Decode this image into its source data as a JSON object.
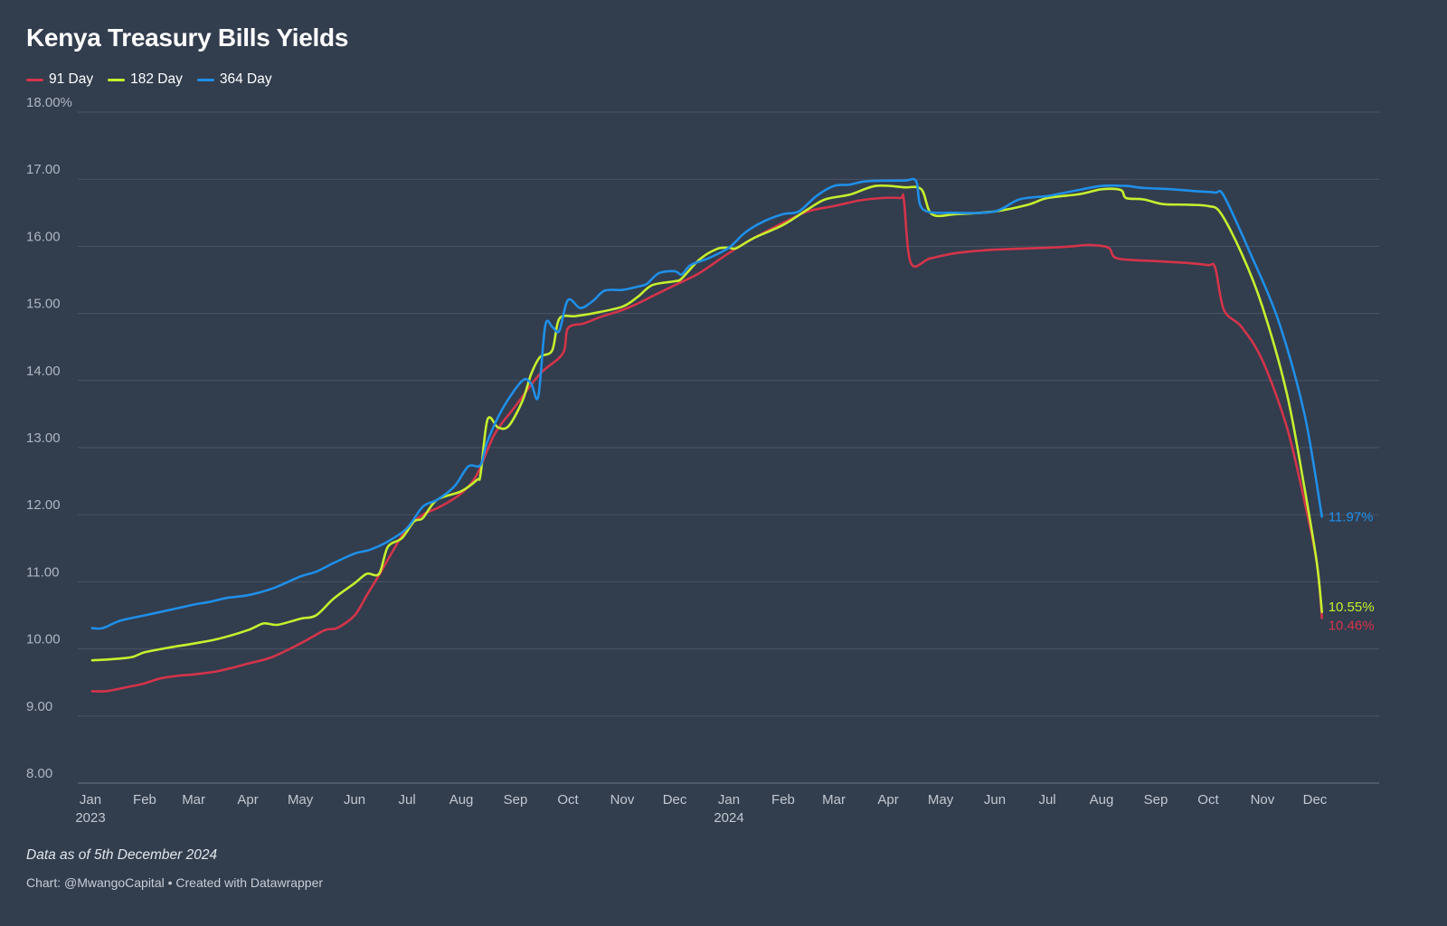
{
  "chart_data": {
    "type": "line",
    "title": "Kenya Treasury Bills Yields",
    "y_ticks": [
      "8.00",
      "9.00",
      "10.00",
      "11.00",
      "12.00",
      "13.00",
      "14.00",
      "15.00",
      "16.00",
      "17.00",
      "18.00%"
    ],
    "ylim": [
      8,
      18
    ],
    "xlim": [
      "2023-01-01",
      "2024-12-31"
    ],
    "x_ticks": [
      {
        "date": "2023-01-01",
        "label": "Jan",
        "year": "2023"
      },
      {
        "date": "2023-02-01",
        "label": "Feb"
      },
      {
        "date": "2023-03-01",
        "label": "Mar"
      },
      {
        "date": "2023-04-01",
        "label": "Apr"
      },
      {
        "date": "2023-05-01",
        "label": "May"
      },
      {
        "date": "2023-06-01",
        "label": "Jun"
      },
      {
        "date": "2023-07-01",
        "label": "Jul"
      },
      {
        "date": "2023-08-01",
        "label": "Aug"
      },
      {
        "date": "2023-09-01",
        "label": "Sep"
      },
      {
        "date": "2023-10-01",
        "label": "Oct"
      },
      {
        "date": "2023-11-01",
        "label": "Nov"
      },
      {
        "date": "2023-12-01",
        "label": "Dec"
      },
      {
        "date": "2024-01-01",
        "label": "Jan",
        "year": "2024"
      },
      {
        "date": "2024-02-01",
        "label": "Feb"
      },
      {
        "date": "2024-03-01",
        "label": "Mar"
      },
      {
        "date": "2024-04-01",
        "label": "Apr"
      },
      {
        "date": "2024-05-01",
        "label": "May"
      },
      {
        "date": "2024-06-01",
        "label": "Jun"
      },
      {
        "date": "2024-07-01",
        "label": "Jul"
      },
      {
        "date": "2024-08-01",
        "label": "Aug"
      },
      {
        "date": "2024-09-01",
        "label": "Sep"
      },
      {
        "date": "2024-10-01",
        "label": "Oct"
      },
      {
        "date": "2024-11-01",
        "label": "Nov"
      },
      {
        "date": "2024-12-01",
        "label": "Dec"
      }
    ],
    "grid": true,
    "legend": "top-left",
    "series": [
      {
        "name": "91 Day",
        "color": "#d4344a",
        "end_label": "10.46%",
        "points": [
          [
            "2023-01-02",
            9.37
          ],
          [
            "2023-01-10",
            9.37
          ],
          [
            "2023-01-20",
            9.42
          ],
          [
            "2023-01-31",
            9.48
          ],
          [
            "2023-02-10",
            9.56
          ],
          [
            "2023-02-20",
            9.6
          ],
          [
            "2023-03-01",
            9.62
          ],
          [
            "2023-03-15",
            9.67
          ],
          [
            "2023-04-01",
            9.78
          ],
          [
            "2023-04-15",
            9.88
          ],
          [
            "2023-05-01",
            10.08
          ],
          [
            "2023-05-15",
            10.28
          ],
          [
            "2023-05-22",
            10.31
          ],
          [
            "2023-06-01",
            10.5
          ],
          [
            "2023-06-08",
            10.8
          ],
          [
            "2023-06-15",
            11.1
          ],
          [
            "2023-06-22",
            11.42
          ],
          [
            "2023-07-01",
            11.8
          ],
          [
            "2023-07-10",
            12.0
          ],
          [
            "2023-07-20",
            12.12
          ],
          [
            "2023-08-01",
            12.32
          ],
          [
            "2023-08-10",
            12.6
          ],
          [
            "2023-08-20",
            13.2
          ],
          [
            "2023-09-01",
            13.62
          ],
          [
            "2023-09-15",
            14.1
          ],
          [
            "2023-09-28",
            14.4
          ],
          [
            "2023-10-01",
            14.78
          ],
          [
            "2023-10-10",
            14.85
          ],
          [
            "2023-10-20",
            14.95
          ],
          [
            "2023-11-01",
            15.05
          ],
          [
            "2023-11-10",
            15.15
          ],
          [
            "2023-11-20",
            15.28
          ],
          [
            "2023-12-01",
            15.42
          ],
          [
            "2023-12-15",
            15.6
          ],
          [
            "2024-01-01",
            15.9
          ],
          [
            "2024-01-15",
            16.12
          ],
          [
            "2024-02-01",
            16.35
          ],
          [
            "2024-02-15",
            16.52
          ],
          [
            "2024-03-01",
            16.6
          ],
          [
            "2024-03-15",
            16.68
          ],
          [
            "2024-03-28",
            16.72
          ],
          [
            "2024-04-08",
            16.72
          ],
          [
            "2024-04-10",
            16.7
          ],
          [
            "2024-04-14",
            15.75
          ],
          [
            "2024-04-25",
            15.82
          ],
          [
            "2024-05-10",
            15.9
          ],
          [
            "2024-06-01",
            15.95
          ],
          [
            "2024-07-01",
            15.98
          ],
          [
            "2024-07-15",
            16.0
          ],
          [
            "2024-07-25",
            16.02
          ],
          [
            "2024-08-05",
            15.98
          ],
          [
            "2024-08-10",
            15.82
          ],
          [
            "2024-09-01",
            15.78
          ],
          [
            "2024-09-20",
            15.75
          ],
          [
            "2024-10-01",
            15.72
          ],
          [
            "2024-10-05",
            15.68
          ],
          [
            "2024-10-10",
            15.05
          ],
          [
            "2024-10-20",
            14.8
          ],
          [
            "2024-11-01",
            14.3
          ],
          [
            "2024-11-15",
            13.3
          ],
          [
            "2024-11-25",
            12.2
          ],
          [
            "2024-12-02",
            11.3
          ],
          [
            "2024-12-05",
            10.46
          ]
        ]
      },
      {
        "name": "182 Day",
        "color": "#c6f02e",
        "end_label": "10.55%",
        "points": [
          [
            "2023-01-02",
            9.83
          ],
          [
            "2023-01-15",
            9.85
          ],
          [
            "2023-01-25",
            9.88
          ],
          [
            "2023-02-01",
            9.95
          ],
          [
            "2023-02-15",
            10.02
          ],
          [
            "2023-03-01",
            10.08
          ],
          [
            "2023-03-15",
            10.15
          ],
          [
            "2023-04-01",
            10.28
          ],
          [
            "2023-04-10",
            10.38
          ],
          [
            "2023-04-18",
            10.36
          ],
          [
            "2023-05-01",
            10.45
          ],
          [
            "2023-05-10",
            10.5
          ],
          [
            "2023-05-20",
            10.75
          ],
          [
            "2023-06-01",
            10.98
          ],
          [
            "2023-06-08",
            11.12
          ],
          [
            "2023-06-15",
            11.12
          ],
          [
            "2023-06-20",
            11.52
          ],
          [
            "2023-06-28",
            11.65
          ],
          [
            "2023-07-05",
            11.9
          ],
          [
            "2023-07-10",
            11.95
          ],
          [
            "2023-07-18",
            12.22
          ],
          [
            "2023-08-01",
            12.35
          ],
          [
            "2023-08-10",
            12.52
          ],
          [
            "2023-08-12",
            12.6
          ],
          [
            "2023-08-16",
            13.42
          ],
          [
            "2023-08-22",
            13.3
          ],
          [
            "2023-08-28",
            13.32
          ],
          [
            "2023-09-05",
            13.7
          ],
          [
            "2023-09-10",
            14.1
          ],
          [
            "2023-09-15",
            14.35
          ],
          [
            "2023-09-22",
            14.45
          ],
          [
            "2023-09-26",
            14.92
          ],
          [
            "2023-10-05",
            14.96
          ],
          [
            "2023-10-15",
            15.0
          ],
          [
            "2023-11-01",
            15.1
          ],
          [
            "2023-11-10",
            15.25
          ],
          [
            "2023-11-18",
            15.42
          ],
          [
            "2023-12-01",
            15.48
          ],
          [
            "2023-12-05",
            15.52
          ],
          [
            "2023-12-15",
            15.8
          ],
          [
            "2023-12-25",
            15.96
          ],
          [
            "2024-01-01",
            15.98
          ],
          [
            "2024-01-05",
            15.97
          ],
          [
            "2024-01-15",
            16.12
          ],
          [
            "2024-02-01",
            16.32
          ],
          [
            "2024-02-15",
            16.55
          ],
          [
            "2024-02-25",
            16.7
          ],
          [
            "2024-03-10",
            16.77
          ],
          [
            "2024-03-25",
            16.9
          ],
          [
            "2024-04-10",
            16.88
          ],
          [
            "2024-04-20",
            16.85
          ],
          [
            "2024-04-26",
            16.48
          ],
          [
            "2024-05-10",
            16.48
          ],
          [
            "2024-06-01",
            16.52
          ],
          [
            "2024-06-20",
            16.62
          ],
          [
            "2024-07-01",
            16.72
          ],
          [
            "2024-07-20",
            16.78
          ],
          [
            "2024-08-01",
            16.85
          ],
          [
            "2024-08-12",
            16.84
          ],
          [
            "2024-08-15",
            16.72
          ],
          [
            "2024-08-25",
            16.7
          ],
          [
            "2024-09-05",
            16.63
          ],
          [
            "2024-09-20",
            16.62
          ],
          [
            "2024-10-01",
            16.6
          ],
          [
            "2024-10-08",
            16.5
          ],
          [
            "2024-10-20",
            15.9
          ],
          [
            "2024-11-01",
            15.1
          ],
          [
            "2024-11-15",
            13.8
          ],
          [
            "2024-11-25",
            12.4
          ],
          [
            "2024-12-02",
            11.3
          ],
          [
            "2024-12-05",
            10.55
          ]
        ]
      },
      {
        "name": "364 Day",
        "color": "#1f8fe8",
        "end_label": "11.97%",
        "points": [
          [
            "2023-01-02",
            10.31
          ],
          [
            "2023-01-08",
            10.31
          ],
          [
            "2023-01-18",
            10.42
          ],
          [
            "2023-02-01",
            10.5
          ],
          [
            "2023-02-15",
            10.58
          ],
          [
            "2023-03-01",
            10.66
          ],
          [
            "2023-03-10",
            10.7
          ],
          [
            "2023-03-20",
            10.76
          ],
          [
            "2023-04-01",
            10.8
          ],
          [
            "2023-04-15",
            10.9
          ],
          [
            "2023-05-01",
            11.08
          ],
          [
            "2023-05-10",
            11.15
          ],
          [
            "2023-05-20",
            11.28
          ],
          [
            "2023-06-01",
            11.42
          ],
          [
            "2023-06-10",
            11.48
          ],
          [
            "2023-06-20",
            11.6
          ],
          [
            "2023-07-01",
            11.8
          ],
          [
            "2023-07-10",
            12.12
          ],
          [
            "2023-07-18",
            12.22
          ],
          [
            "2023-07-28",
            12.42
          ],
          [
            "2023-08-05",
            12.72
          ],
          [
            "2023-08-12",
            12.74
          ],
          [
            "2023-08-16",
            13.1
          ],
          [
            "2023-08-25",
            13.6
          ],
          [
            "2023-09-05",
            14.0
          ],
          [
            "2023-09-10",
            13.95
          ],
          [
            "2023-09-14",
            13.76
          ],
          [
            "2023-09-18",
            14.82
          ],
          [
            "2023-09-22",
            14.8
          ],
          [
            "2023-09-26",
            14.74
          ],
          [
            "2023-10-01",
            15.2
          ],
          [
            "2023-10-08",
            15.08
          ],
          [
            "2023-10-15",
            15.18
          ],
          [
            "2023-10-22",
            15.34
          ],
          [
            "2023-11-01",
            15.35
          ],
          [
            "2023-11-10",
            15.4
          ],
          [
            "2023-11-15",
            15.44
          ],
          [
            "2023-11-22",
            15.6
          ],
          [
            "2023-12-01",
            15.63
          ],
          [
            "2023-12-05",
            15.58
          ],
          [
            "2023-12-10",
            15.72
          ],
          [
            "2023-12-20",
            15.82
          ],
          [
            "2024-01-01",
            15.98
          ],
          [
            "2024-01-10",
            16.2
          ],
          [
            "2024-01-20",
            16.36
          ],
          [
            "2024-02-01",
            16.48
          ],
          [
            "2024-02-10",
            16.52
          ],
          [
            "2024-02-20",
            16.75
          ],
          [
            "2024-03-01",
            16.9
          ],
          [
            "2024-03-10",
            16.92
          ],
          [
            "2024-03-20",
            16.97
          ],
          [
            "2024-04-10",
            16.98
          ],
          [
            "2024-04-17",
            16.97
          ],
          [
            "2024-04-21",
            16.55
          ],
          [
            "2024-05-10",
            16.5
          ],
          [
            "2024-06-01",
            16.52
          ],
          [
            "2024-06-15",
            16.7
          ],
          [
            "2024-07-01",
            16.75
          ],
          [
            "2024-07-15",
            16.82
          ],
          [
            "2024-08-01",
            16.9
          ],
          [
            "2024-08-15",
            16.9
          ],
          [
            "2024-08-25",
            16.87
          ],
          [
            "2024-09-10",
            16.85
          ],
          [
            "2024-09-25",
            16.82
          ],
          [
            "2024-10-05",
            16.8
          ],
          [
            "2024-10-10",
            16.75
          ],
          [
            "2024-10-25",
            15.9
          ],
          [
            "2024-11-10",
            14.9
          ],
          [
            "2024-11-25",
            13.5
          ],
          [
            "2024-12-05",
            11.97
          ]
        ]
      }
    ]
  },
  "footer": {
    "note": "Data as of 5th December 2024",
    "credit": "Chart: @MwangoCapital • Created with Datawrapper"
  }
}
